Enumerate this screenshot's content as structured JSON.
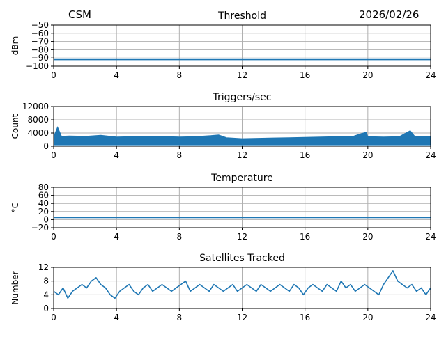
{
  "header": {
    "station": "CSM",
    "date": "2026/02/26"
  },
  "colors": {
    "series": "#1f77b4",
    "grid": "#b0b0b0",
    "axis": "#000000"
  },
  "chart_data": [
    {
      "type": "line",
      "title": "Threshold",
      "ylabel": "dBm",
      "xlabel": "",
      "xlim": [
        0,
        24
      ],
      "ylim": [
        -100,
        -50
      ],
      "x_ticks": [
        0,
        4,
        8,
        12,
        16,
        20,
        24
      ],
      "y_ticks": [
        -100,
        -90,
        -80,
        -70,
        -60,
        -50
      ],
      "y_tick_labels": [
        "−100",
        "−90",
        "−80",
        "−70",
        "−60",
        "−50"
      ],
      "grid": true,
      "series": [
        {
          "x": [
            0,
            24
          ],
          "values": [
            -92,
            -92
          ]
        }
      ]
    },
    {
      "type": "line",
      "title": "Triggers/sec",
      "ylabel": "Count",
      "xlabel": "",
      "xlim": [
        0,
        24
      ],
      "ylim": [
        0,
        12000
      ],
      "x_ticks": [
        0,
        4,
        8,
        12,
        16,
        20,
        24
      ],
      "y_ticks": [
        0,
        4000,
        8000,
        12000
      ],
      "y_tick_labels": [
        "0",
        "4000",
        "8000",
        "12000"
      ],
      "grid": true,
      "series": [
        {
          "x": [
            0,
            0.25,
            0.5,
            1,
            2,
            3,
            4,
            5,
            6,
            7,
            8,
            9,
            10,
            10.5,
            11,
            12,
            13,
            14,
            15,
            16,
            17,
            18,
            19,
            19.9,
            20,
            21,
            22,
            22.7,
            23,
            24
          ],
          "values": [
            2800,
            5800,
            3000,
            3100,
            3000,
            3300,
            2800,
            2900,
            2900,
            2900,
            2800,
            2900,
            3200,
            3400,
            2600,
            2300,
            2400,
            2500,
            2600,
            2700,
            2800,
            2900,
            2900,
            4300,
            2900,
            2800,
            2900,
            4700,
            2900,
            3000
          ],
          "band_low": [
            400,
            400,
            400,
            400,
            400,
            400,
            400,
            400,
            400,
            400,
            400,
            400,
            400,
            400,
            400,
            400,
            400,
            400,
            400,
            400,
            400,
            400,
            400,
            400,
            400,
            400,
            400,
            400,
            400,
            400
          ]
        }
      ]
    },
    {
      "type": "line",
      "title": "Temperature",
      "ylabel": "°C",
      "xlabel": "",
      "xlim": [
        0,
        24
      ],
      "ylim": [
        -20,
        80
      ],
      "x_ticks": [
        0,
        4,
        8,
        12,
        16,
        20,
        24
      ],
      "y_ticks": [
        -20,
        0,
        20,
        40,
        60,
        80
      ],
      "y_tick_labels": [
        "−20",
        "0",
        "20",
        "40",
        "60",
        "80"
      ],
      "grid": true,
      "series": [
        {
          "x": [
            0,
            24
          ],
          "values": [
            5,
            5
          ]
        }
      ]
    },
    {
      "type": "line",
      "title": "Satellites Tracked",
      "ylabel": "Number",
      "xlabel": "",
      "xlim": [
        0,
        24
      ],
      "ylim": [
        0,
        12
      ],
      "x_ticks": [
        0,
        4,
        8,
        12,
        16,
        20,
        24
      ],
      "y_ticks": [
        0,
        4,
        8,
        12
      ],
      "y_tick_labels": [
        "0",
        "4",
        "8",
        "12"
      ],
      "grid": true,
      "series": [
        {
          "x": [
            0,
            0.3,
            0.6,
            0.9,
            1.2,
            1.5,
            1.8,
            2.1,
            2.4,
            2.7,
            3.0,
            3.3,
            3.6,
            3.9,
            4.2,
            4.5,
            4.8,
            5.1,
            5.4,
            5.7,
            6.0,
            6.3,
            6.6,
            6.9,
            7.2,
            7.5,
            7.8,
            8.1,
            8.4,
            8.7,
            9.0,
            9.3,
            9.6,
            9.9,
            10.2,
            10.5,
            10.8,
            11.1,
            11.4,
            11.7,
            12.0,
            12.3,
            12.6,
            12.9,
            13.2,
            13.5,
            13.8,
            14.1,
            14.4,
            14.7,
            15.0,
            15.3,
            15.6,
            15.9,
            16.2,
            16.5,
            16.8,
            17.1,
            17.4,
            17.7,
            18.0,
            18.3,
            18.6,
            18.9,
            19.2,
            19.5,
            19.8,
            20.1,
            20.4,
            20.7,
            21.0,
            21.3,
            21.6,
            21.9,
            22.2,
            22.5,
            22.8,
            23.1,
            23.4,
            23.7,
            24.0
          ],
          "values": [
            5,
            4,
            6,
            3,
            5,
            6,
            7,
            6,
            8,
            9,
            7,
            6,
            4,
            3,
            5,
            6,
            7,
            5,
            4,
            6,
            7,
            5,
            6,
            7,
            6,
            5,
            6,
            7,
            8,
            5,
            6,
            7,
            6,
            5,
            7,
            6,
            5,
            6,
            7,
            5,
            6,
            7,
            6,
            5,
            7,
            6,
            5,
            6,
            7,
            6,
            5,
            7,
            6,
            4,
            6,
            7,
            6,
            5,
            7,
            6,
            5,
            8,
            6,
            7,
            5,
            6,
            7,
            6,
            5,
            4,
            7,
            9,
            11,
            8,
            7,
            6,
            7,
            5,
            6,
            4,
            6
          ]
        }
      ]
    }
  ]
}
